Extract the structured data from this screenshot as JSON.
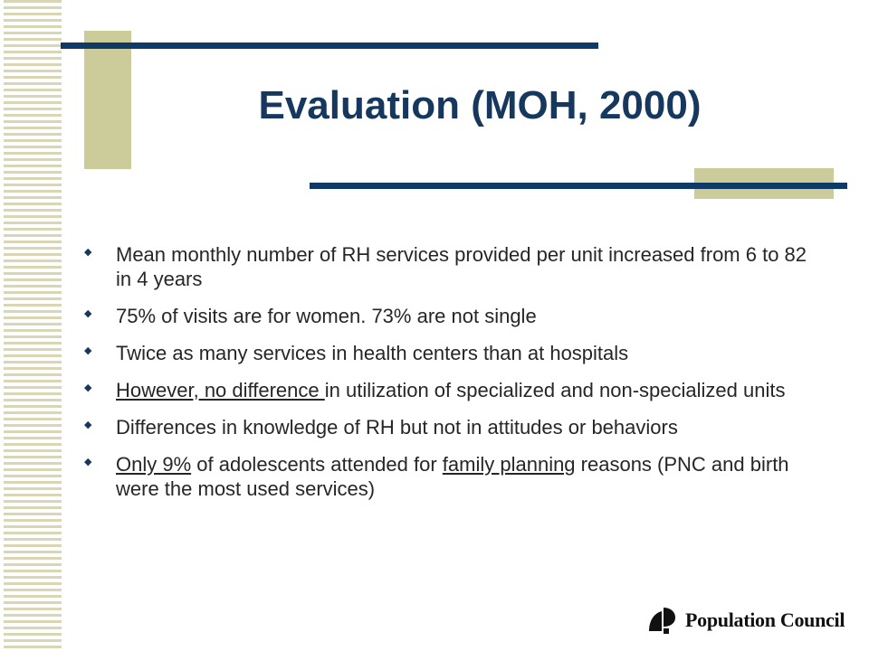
{
  "slide": {
    "title": "Evaluation (MOH, 2000)",
    "bullets": [
      {
        "parts": [
          {
            "text": "Mean monthly number of RH services provided per unit increased from 6 to 82 in 4 years",
            "u": false
          }
        ]
      },
      {
        "parts": [
          {
            "text": "75% of visits are for women. 73% are not single",
            "u": false
          }
        ]
      },
      {
        "parts": [
          {
            "text": "Twice as many services in health centers than at hospitals",
            "u": false
          }
        ]
      },
      {
        "parts": [
          {
            "text": "However, no difference ",
            "u": true
          },
          {
            "text": "in utilization of specialized and non-specialized units",
            "u": false
          }
        ]
      },
      {
        "parts": [
          {
            "text": "Differences in knowledge of RH but not in attitudes or behaviors",
            "u": false
          }
        ]
      },
      {
        "parts": [
          {
            "text": "Only 9%",
            "u": true
          },
          {
            "text": " of adolescents attended for ",
            "u": false
          },
          {
            "text": "family planning",
            "u": true
          },
          {
            "text": " reasons (PNC and birth were the most used services)",
            "u": false
          }
        ]
      }
    ]
  },
  "logo": {
    "text": "Population Council",
    "icon": "population-council-logo-icon"
  },
  "colors": {
    "navy": "#0f3a66",
    "olive": "#cccc9a",
    "stripe": "#d8d6b4",
    "title": "#16375e"
  }
}
